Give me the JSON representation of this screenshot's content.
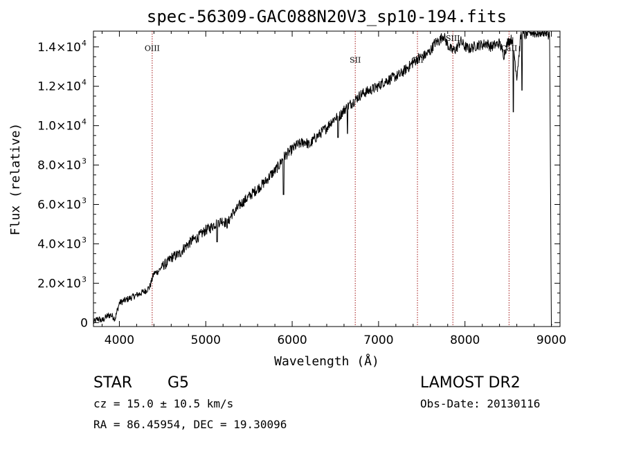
{
  "chart_data": {
    "type": "line",
    "title": "spec-56309-GAC088N20V3_sp10-194.fits",
    "xlabel": "Wavelength (Å)",
    "ylabel": "Flux (relative)",
    "xlim": [
      3700,
      9100
    ],
    "ylim": [
      -200,
      14800
    ],
    "grid": false,
    "x_ticks": [
      {
        "value": 4000,
        "label": "4000"
      },
      {
        "value": 5000,
        "label": "5000"
      },
      {
        "value": 6000,
        "label": "6000"
      },
      {
        "value": 7000,
        "label": "7000"
      },
      {
        "value": 8000,
        "label": "8000"
      },
      {
        "value": 9000,
        "label": "9000"
      }
    ],
    "y_ticks": [
      {
        "value": 0,
        "mant": "0",
        "exp": ""
      },
      {
        "value": 2000,
        "mant": "2.0×10",
        "exp": "3"
      },
      {
        "value": 4000,
        "mant": "4.0×10",
        "exp": "3"
      },
      {
        "value": 6000,
        "mant": "6.0×10",
        "exp": "3"
      },
      {
        "value": 8000,
        "mant": "8.0×10",
        "exp": "3"
      },
      {
        "value": 10000,
        "mant": "1.0×10",
        "exp": "4"
      },
      {
        "value": 12000,
        "mant": "1.2×10",
        "exp": "4"
      },
      {
        "value": 14000,
        "mant": "1.4×10",
        "exp": "4"
      }
    ],
    "spectral_lines": [
      {
        "label": "OIII",
        "x": 4380,
        "label_y": 13800
      },
      {
        "label": "SII",
        "x": 6730,
        "label_y": 13200
      },
      {
        "label": "OII",
        "x": 7450,
        "label_y": 13200
      },
      {
        "label": "SIII",
        "x": 7860,
        "label_y": 14300
      },
      {
        "label": "CaII",
        "x": 8510,
        "label_y": 13800
      }
    ],
    "spectrum": {
      "x": [
        3700,
        3750,
        3800,
        3850,
        3900,
        3950,
        4000,
        4050,
        4100,
        4150,
        4200,
        4250,
        4300,
        4350,
        4400,
        4450,
        4500,
        4550,
        4600,
        4650,
        4700,
        4750,
        4800,
        4850,
        4900,
        4950,
        5000,
        5050,
        5100,
        5150,
        5200,
        5250,
        5300,
        5350,
        5400,
        5450,
        5500,
        5550,
        5600,
        5650,
        5700,
        5750,
        5800,
        5850,
        5900,
        5950,
        6000,
        6050,
        6100,
        6150,
        6200,
        6250,
        6300,
        6350,
        6400,
        6450,
        6500,
        6550,
        6600,
        6650,
        6700,
        6750,
        6800,
        6850,
        6900,
        6950,
        7000,
        7050,
        7100,
        7150,
        7200,
        7250,
        7300,
        7350,
        7400,
        7450,
        7500,
        7550,
        7600,
        7650,
        7700,
        7750,
        7800,
        7850,
        7900,
        7950,
        8000,
        8050,
        8100,
        8150,
        8200,
        8250,
        8300,
        8350,
        8400,
        8450,
        8500,
        8550,
        8600,
        8650,
        8700,
        8750,
        8800,
        8850,
        8900,
        8950,
        8980,
        9000,
        9010
      ],
      "y": [
        0,
        200,
        100,
        300,
        400,
        200,
        1000,
        1100,
        1200,
        1300,
        1400,
        1500,
        1600,
        1800,
        2500,
        2600,
        2900,
        3000,
        3300,
        3400,
        3500,
        3800,
        4000,
        4200,
        4300,
        4500,
        4700,
        4800,
        5000,
        5100,
        5200,
        5000,
        5500,
        5700,
        6000,
        6200,
        6400,
        6600,
        6800,
        7000,
        7200,
        7500,
        7700,
        8000,
        8400,
        8600,
        8800,
        9000,
        9100,
        9200,
        9000,
        9300,
        9500,
        9700,
        9900,
        10200,
        10400,
        10500,
        10800,
        11000,
        11200,
        11400,
        11600,
        11700,
        11800,
        11900,
        12000,
        12200,
        12300,
        12400,
        12500,
        12600,
        12800,
        13000,
        13200,
        13400,
        13500,
        13600,
        13800,
        14200,
        14300,
        14600,
        14100,
        13800,
        13900,
        14300,
        14000,
        13900,
        14000,
        14100,
        14100,
        14200,
        14000,
        14100,
        14200,
        13600,
        14300,
        14400,
        12500,
        14700,
        14600,
        14800,
        14700,
        14700,
        14800,
        14700,
        14600,
        -100,
        -100
      ]
    },
    "absorption_dips": [
      {
        "x": 5130,
        "y": 4100
      },
      {
        "x": 5900,
        "y": 6500
      },
      {
        "x": 6530,
        "y": 9400
      },
      {
        "x": 6640,
        "y": 9600
      },
      {
        "x": 8560,
        "y": 10700
      },
      {
        "x": 8660,
        "y": 11800
      }
    ]
  },
  "info": {
    "object": "STAR",
    "subclass": "G5",
    "survey": "LAMOST DR2",
    "cz": "cz = 15.0 ± 10.5 km/s",
    "obs_date": "Obs-Date: 20130116",
    "coords": "RA =  86.45954, DEC =  19.30096"
  }
}
